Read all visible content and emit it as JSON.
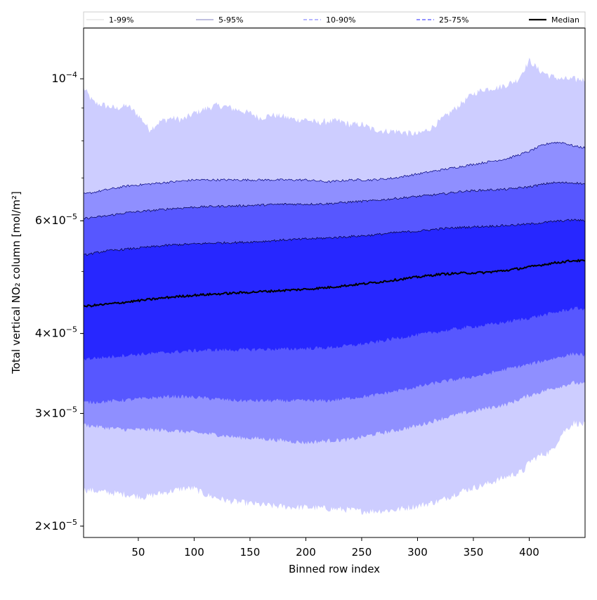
{
  "chart_data": {
    "type": "area",
    "title": "",
    "xlabel": "Binned row index",
    "ylabel": "Total vertical NO₂ column [mol/m²]",
    "x_range": [
      1,
      450
    ],
    "xlim": [
      1,
      450
    ],
    "ylim": [
      1.92e-05,
      0.00012
    ],
    "yscale": "log",
    "x_ticks": [
      50,
      100,
      150,
      200,
      250,
      300,
      350,
      400
    ],
    "x_tick_labels": [
      "50",
      "100",
      "150",
      "200",
      "250",
      "300",
      "350",
      "400"
    ],
    "y_ticks": [
      {
        "value": 2e-05,
        "mant": "2",
        "base": "×10",
        "exp": "−5"
      },
      {
        "value": 3e-05,
        "mant": "3",
        "base": "×10",
        "exp": "−5"
      },
      {
        "value": 4e-05,
        "mant": "4",
        "base": "×10",
        "exp": "−5"
      },
      {
        "value": 6e-05,
        "mant": "6",
        "base": "×10",
        "exp": "−5"
      },
      {
        "value": 0.0001,
        "mant": "",
        "base": "10",
        "exp": "−4"
      }
    ],
    "legend_position": "top, spanning plot width",
    "legend": [
      {
        "label": "1-99%",
        "style": "thin solid"
      },
      {
        "label": "5-95%",
        "style": "thin solid blue"
      },
      {
        "label": "10-90%",
        "style": "dashed"
      },
      {
        "label": "25-75%",
        "style": "dashed"
      },
      {
        "label": "Median",
        "style": "thick solid black"
      }
    ],
    "bands": [
      {
        "name": "1-99%",
        "color": "#cdcdff",
        "edge": "#ffffff",
        "upper": [
          [
            1,
            9.7e-05
          ],
          [
            10,
            9.2e-05
          ],
          [
            20,
            9.1e-05
          ],
          [
            30,
            9e-05
          ],
          [
            40,
            9.1e-05
          ],
          [
            50,
            8.8e-05
          ],
          [
            60,
            8.35e-05
          ],
          [
            70,
            8.6e-05
          ],
          [
            80,
            8.7e-05
          ],
          [
            90,
            8.65e-05
          ],
          [
            100,
            8.85e-05
          ],
          [
            110,
            9e-05
          ],
          [
            120,
            9.1e-05
          ],
          [
            130,
            9.05e-05
          ],
          [
            140,
            8.95e-05
          ],
          [
            150,
            8.85e-05
          ],
          [
            160,
            8.7e-05
          ],
          [
            170,
            8.8e-05
          ],
          [
            180,
            8.75e-05
          ],
          [
            190,
            8.65e-05
          ],
          [
            200,
            8.65e-05
          ],
          [
            210,
            8.55e-05
          ],
          [
            220,
            8.6e-05
          ],
          [
            230,
            8.6e-05
          ],
          [
            240,
            8.5e-05
          ],
          [
            250,
            8.5e-05
          ],
          [
            260,
            8.35e-05
          ],
          [
            270,
            8.3e-05
          ],
          [
            280,
            8.3e-05
          ],
          [
            290,
            8.25e-05
          ],
          [
            300,
            8.2e-05
          ],
          [
            310,
            8.35e-05
          ],
          [
            320,
            8.6e-05
          ],
          [
            330,
            8.9e-05
          ],
          [
            340,
            9.2e-05
          ],
          [
            350,
            9.5e-05
          ],
          [
            360,
            9.65e-05
          ],
          [
            370,
            9.7e-05
          ],
          [
            380,
            9.8e-05
          ],
          [
            390,
            0.0001
          ],
          [
            400,
            0.000107
          ],
          [
            410,
            0.000103
          ],
          [
            420,
            0.000101
          ],
          [
            430,
            0.0001
          ],
          [
            440,
            0.0001
          ],
          [
            450,
            0.0001
          ]
        ],
        "lower": [
          [
            1,
            2.28e-05
          ],
          [
            20,
            2.26e-05
          ],
          [
            40,
            2.24e-05
          ],
          [
            55,
            2.22e-05
          ],
          [
            70,
            2.25e-05
          ],
          [
            90,
            2.29e-05
          ],
          [
            100,
            2.29e-05
          ],
          [
            110,
            2.24e-05
          ],
          [
            130,
            2.19e-05
          ],
          [
            150,
            2.17e-05
          ],
          [
            170,
            2.15e-05
          ],
          [
            190,
            2.14e-05
          ],
          [
            200,
            2.14e-05
          ],
          [
            220,
            2.13e-05
          ],
          [
            240,
            2.12e-05
          ],
          [
            250,
            2.11e-05
          ],
          [
            260,
            2.11e-05
          ],
          [
            280,
            2.12e-05
          ],
          [
            300,
            2.15e-05
          ],
          [
            320,
            2.19e-05
          ],
          [
            340,
            2.27e-05
          ],
          [
            360,
            2.32e-05
          ],
          [
            380,
            2.39e-05
          ],
          [
            395,
            2.44e-05
          ],
          [
            400,
            2.52e-05
          ],
          [
            410,
            2.58e-05
          ],
          [
            420,
            2.62e-05
          ],
          [
            430,
            2.8e-05
          ],
          [
            440,
            2.9e-05
          ],
          [
            450,
            2.88e-05
          ]
        ]
      },
      {
        "name": "5-95%",
        "color": "#8f8fff",
        "edge": "#00007a",
        "upper": [
          [
            1,
            6.6e-05
          ],
          [
            20,
            6.7e-05
          ],
          [
            40,
            6.8e-05
          ],
          [
            60,
            6.85e-05
          ],
          [
            80,
            6.9e-05
          ],
          [
            100,
            6.95e-05
          ],
          [
            120,
            6.95e-05
          ],
          [
            140,
            6.95e-05
          ],
          [
            160,
            6.95e-05
          ],
          [
            180,
            6.95e-05
          ],
          [
            200,
            6.95e-05
          ],
          [
            220,
            6.9e-05
          ],
          [
            240,
            6.95e-05
          ],
          [
            260,
            6.95e-05
          ],
          [
            280,
            7e-05
          ],
          [
            300,
            7.1e-05
          ],
          [
            320,
            7.2e-05
          ],
          [
            340,
            7.3e-05
          ],
          [
            360,
            7.4e-05
          ],
          [
            380,
            7.5e-05
          ],
          [
            400,
            7.7e-05
          ],
          [
            410,
            7.85e-05
          ],
          [
            420,
            7.95e-05
          ],
          [
            430,
            7.95e-05
          ],
          [
            440,
            7.85e-05
          ],
          [
            450,
            7.8e-05
          ]
        ],
        "lower": [
          [
            1,
            2.88e-05
          ],
          [
            20,
            2.85e-05
          ],
          [
            40,
            2.83e-05
          ],
          [
            60,
            2.83e-05
          ],
          [
            80,
            2.82e-05
          ],
          [
            100,
            2.8e-05
          ],
          [
            120,
            2.78e-05
          ],
          [
            140,
            2.75e-05
          ],
          [
            160,
            2.74e-05
          ],
          [
            180,
            2.72e-05
          ],
          [
            200,
            2.7e-05
          ],
          [
            220,
            2.72e-05
          ],
          [
            240,
            2.73e-05
          ],
          [
            260,
            2.78e-05
          ],
          [
            280,
            2.82e-05
          ],
          [
            300,
            2.87e-05
          ],
          [
            320,
            2.94e-05
          ],
          [
            340,
            3e-05
          ],
          [
            360,
            3.05e-05
          ],
          [
            380,
            3.1e-05
          ],
          [
            400,
            3.2e-05
          ],
          [
            420,
            3.28e-05
          ],
          [
            440,
            3.35e-05
          ],
          [
            450,
            3.33e-05
          ]
        ]
      },
      {
        "name": "10-90%",
        "color": "#5757ff",
        "edge": "#00004a",
        "upper": [
          [
            1,
            6.05e-05
          ],
          [
            20,
            6.1e-05
          ],
          [
            40,
            6.18e-05
          ],
          [
            60,
            6.22e-05
          ],
          [
            80,
            6.27e-05
          ],
          [
            100,
            6.3e-05
          ],
          [
            120,
            6.32e-05
          ],
          [
            140,
            6.33e-05
          ],
          [
            160,
            6.35e-05
          ],
          [
            180,
            6.37e-05
          ],
          [
            200,
            6.37e-05
          ],
          [
            220,
            6.38e-05
          ],
          [
            240,
            6.42e-05
          ],
          [
            260,
            6.45e-05
          ],
          [
            280,
            6.5e-05
          ],
          [
            300,
            6.55e-05
          ],
          [
            320,
            6.6e-05
          ],
          [
            340,
            6.67e-05
          ],
          [
            360,
            6.7e-05
          ],
          [
            380,
            6.72e-05
          ],
          [
            400,
            6.78e-05
          ],
          [
            420,
            6.88e-05
          ],
          [
            440,
            6.88e-05
          ],
          [
            450,
            6.85e-05
          ]
        ],
        "lower": [
          [
            1,
            3.12e-05
          ],
          [
            20,
            3.13e-05
          ],
          [
            40,
            3.15e-05
          ],
          [
            60,
            3.17e-05
          ],
          [
            80,
            3.19e-05
          ],
          [
            100,
            3.18e-05
          ],
          [
            120,
            3.16e-05
          ],
          [
            140,
            3.14e-05
          ],
          [
            160,
            3.14e-05
          ],
          [
            180,
            3.14e-05
          ],
          [
            200,
            3.14e-05
          ],
          [
            220,
            3.14e-05
          ],
          [
            240,
            3.17e-05
          ],
          [
            260,
            3.2e-05
          ],
          [
            280,
            3.25e-05
          ],
          [
            300,
            3.3e-05
          ],
          [
            320,
            3.36e-05
          ],
          [
            340,
            3.4e-05
          ],
          [
            360,
            3.45e-05
          ],
          [
            380,
            3.52e-05
          ],
          [
            400,
            3.58e-05
          ],
          [
            420,
            3.65e-05
          ],
          [
            440,
            3.72e-05
          ],
          [
            450,
            3.7e-05
          ]
        ]
      },
      {
        "name": "25-75%",
        "color": "#2727ff",
        "edge": "#000030",
        "upper": [
          [
            1,
            5.3e-05
          ],
          [
            20,
            5.38e-05
          ],
          [
            40,
            5.42e-05
          ],
          [
            60,
            5.46e-05
          ],
          [
            80,
            5.5e-05
          ],
          [
            100,
            5.52e-05
          ],
          [
            120,
            5.54e-05
          ],
          [
            140,
            5.55e-05
          ],
          [
            160,
            5.57e-05
          ],
          [
            180,
            5.6e-05
          ],
          [
            200,
            5.62e-05
          ],
          [
            220,
            5.64e-05
          ],
          [
            240,
            5.67e-05
          ],
          [
            260,
            5.7e-05
          ],
          [
            280,
            5.75e-05
          ],
          [
            300,
            5.78e-05
          ],
          [
            320,
            5.83e-05
          ],
          [
            340,
            5.86e-05
          ],
          [
            360,
            5.88e-05
          ],
          [
            380,
            5.9e-05
          ],
          [
            400,
            5.93e-05
          ],
          [
            420,
            5.98e-05
          ],
          [
            440,
            6.02e-05
          ],
          [
            450,
            6e-05
          ]
        ],
        "lower": [
          [
            1,
            3.65e-05
          ],
          [
            20,
            3.67e-05
          ],
          [
            40,
            3.7e-05
          ],
          [
            60,
            3.72e-05
          ],
          [
            80,
            3.74e-05
          ],
          [
            100,
            3.76e-05
          ],
          [
            120,
            3.77e-05
          ],
          [
            140,
            3.77e-05
          ],
          [
            160,
            3.78e-05
          ],
          [
            180,
            3.78e-05
          ],
          [
            200,
            3.79e-05
          ],
          [
            220,
            3.8e-05
          ],
          [
            240,
            3.83e-05
          ],
          [
            260,
            3.87e-05
          ],
          [
            280,
            3.93e-05
          ],
          [
            300,
            3.98e-05
          ],
          [
            320,
            4.03e-05
          ],
          [
            340,
            4.08e-05
          ],
          [
            360,
            4.12e-05
          ],
          [
            380,
            4.17e-05
          ],
          [
            400,
            4.23e-05
          ],
          [
            420,
            4.3e-05
          ],
          [
            440,
            4.38e-05
          ],
          [
            450,
            4.37e-05
          ]
        ]
      }
    ],
    "series": [
      {
        "name": "Median",
        "color": "#000000",
        "points": [
          [
            1,
            4.41e-05
          ],
          [
            20,
            4.44e-05
          ],
          [
            40,
            4.48e-05
          ],
          [
            60,
            4.52e-05
          ],
          [
            80,
            4.56e-05
          ],
          [
            100,
            4.59e-05
          ],
          [
            120,
            4.61e-05
          ],
          [
            140,
            4.63e-05
          ],
          [
            160,
            4.65e-05
          ],
          [
            180,
            4.67e-05
          ],
          [
            200,
            4.69e-05
          ],
          [
            220,
            4.72e-05
          ],
          [
            240,
            4.76e-05
          ],
          [
            260,
            4.8e-05
          ],
          [
            280,
            4.85e-05
          ],
          [
            300,
            4.9e-05
          ],
          [
            320,
            4.95e-05
          ],
          [
            340,
            4.97e-05
          ],
          [
            360,
            4.98e-05
          ],
          [
            380,
            5.02e-05
          ],
          [
            400,
            5.08e-05
          ],
          [
            420,
            5.15e-05
          ],
          [
            440,
            5.2e-05
          ],
          [
            450,
            5.19e-05
          ]
        ]
      }
    ]
  }
}
